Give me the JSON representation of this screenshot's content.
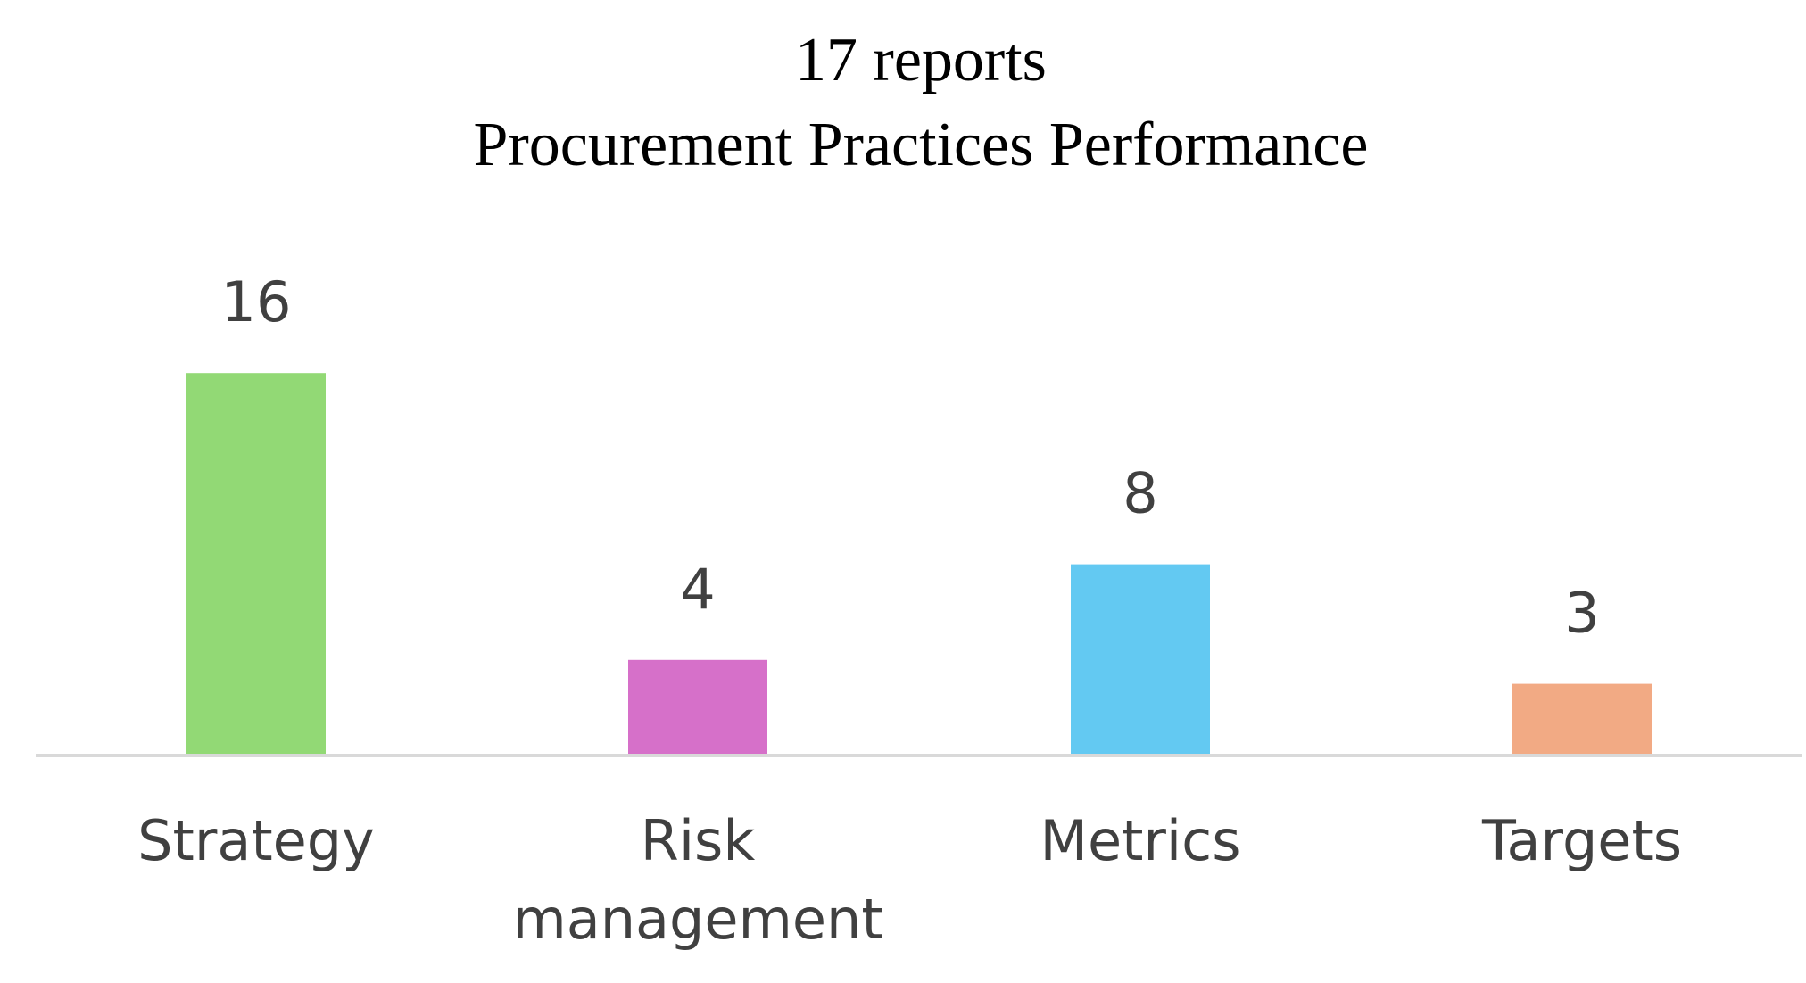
{
  "chart_data": {
    "type": "bar",
    "title_lines": [
      "17 reports",
      "Procurement Practices Performance"
    ],
    "categories": [
      [
        "Strategy"
      ],
      [
        "Risk",
        "management"
      ],
      [
        "Metrics"
      ],
      [
        "Targets"
      ]
    ],
    "values": [
      16,
      4,
      8,
      3
    ],
    "colors": [
      "#92D975",
      "#D670C9",
      "#63C9F2",
      "#F2AA84"
    ],
    "axis_color": "#D9D9D9",
    "xlabel": "",
    "ylabel": "",
    "ylim": [
      0,
      16
    ],
    "grid": false,
    "legend": "none",
    "data_labels": true
  }
}
